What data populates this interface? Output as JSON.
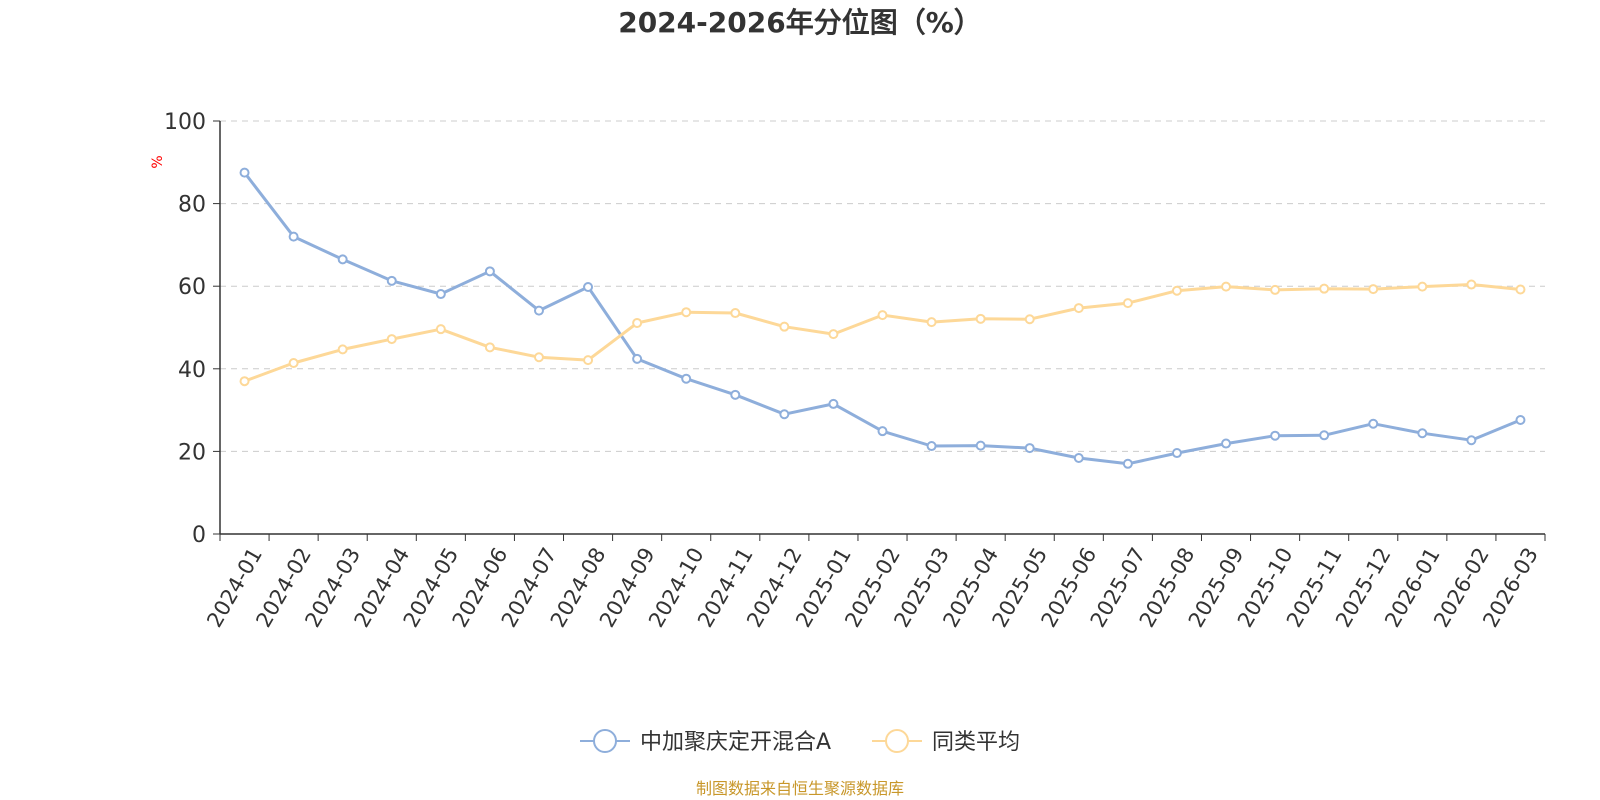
{
  "chart_data": {
    "type": "line",
    "title": "2024-2026年分位图（%）",
    "ylabel": "%",
    "xlabel": "",
    "ylim": [
      0,
      100
    ],
    "yticks": [
      0,
      20,
      40,
      60,
      80,
      100
    ],
    "grid": true,
    "legend_position": "bottom-center",
    "categories": [
      "2024-01",
      "2024-02",
      "2024-03",
      "2024-04",
      "2024-05",
      "2024-06",
      "2024-07",
      "2024-08",
      "2024-09",
      "2024-10",
      "2024-11",
      "2024-12",
      "2025-01",
      "2025-02",
      "2025-03",
      "2025-04",
      "2025-05",
      "2025-06",
      "2025-07",
      "2025-08",
      "2025-09",
      "2025-10",
      "2025-11",
      "2025-12",
      "2026-01",
      "2026-02",
      "2026-03"
    ],
    "series": [
      {
        "name": "中加聚庆定开混合A",
        "color": "#8eaedb",
        "values": [
          87.5,
          72,
          66.5,
          61.3,
          58.1,
          63.6,
          54.1,
          59.8,
          42.4,
          37.6,
          33.7,
          29,
          31.5,
          24.9,
          21.3,
          21.4,
          20.8,
          18.4,
          17,
          19.6,
          21.9,
          23.8,
          23.9,
          26.7,
          24.4,
          22.7,
          27.6
        ]
      },
      {
        "name": "同类平均",
        "color": "#fdd898",
        "values": [
          37,
          41.4,
          44.7,
          47.2,
          49.6,
          45.2,
          42.8,
          42.1,
          51.1,
          53.7,
          53.5,
          50.2,
          48.4,
          53,
          51.3,
          52.1,
          52,
          54.7,
          55.9,
          58.9,
          59.9,
          59.1,
          59.4,
          59.3,
          59.9,
          60.4,
          59.2
        ]
      }
    ]
  },
  "footer": {
    "source": "制图数据来自恒生聚源数据库"
  }
}
